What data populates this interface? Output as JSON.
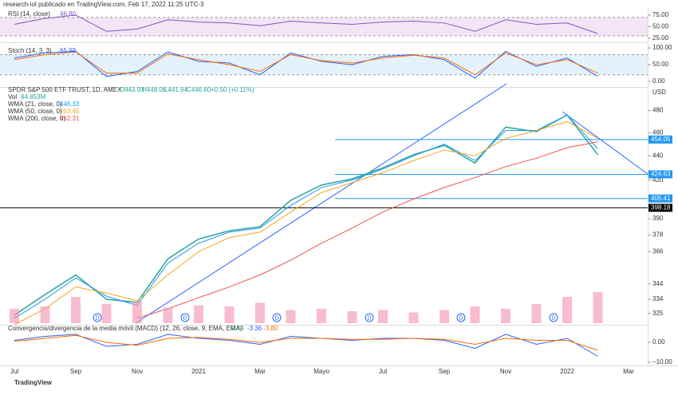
{
  "header": "research-iol publicado en TradingView.com, Feb 17, 2022 11:25 UTC-3",
  "footer": "TradingView",
  "dividends": [
    "D",
    "D",
    "D",
    "D",
    "D",
    "D"
  ],
  "chart_data": [
    {
      "type": "line",
      "ylim": [
        18,
        87
      ],
      "yticks": [
        {
          "value": 75,
          "label": "75.00"
        },
        {
          "value": 50,
          "label": "50.00"
        },
        {
          "value": 25,
          "label": "25.00"
        }
      ],
      "band": [
        30,
        70
      ],
      "band_color": "#f3e5f5",
      "series": [
        {
          "name": "RSI (14, close)",
          "current": "46.80",
          "color": "#7e57c2",
          "values": [
            55,
            68,
            75,
            40,
            45,
            65,
            60,
            58,
            52,
            62,
            58,
            55,
            60,
            62,
            58,
            40,
            65,
            55,
            58,
            35,
            null
          ]
        }
      ]
    },
    {
      "type": "line",
      "ylim": [
        -14,
        112
      ],
      "yticks": [
        {
          "value": 100,
          "label": "100.00"
        },
        {
          "value": 50,
          "label": "50.00"
        },
        {
          "value": 0,
          "label": "0.00"
        }
      ],
      "band": [
        20,
        80
      ],
      "band_color": "#e3f2fd",
      "series": [
        {
          "name": "Stoch (14, 3, 3)",
          "current": "65.99",
          "color": "#2962ff",
          "values": [
            70,
            85,
            90,
            15,
            30,
            88,
            60,
            55,
            20,
            85,
            60,
            50,
            75,
            80,
            65,
            10,
            90,
            45,
            70,
            15,
            null
          ]
        },
        {
          "color": "#ff6d00",
          "values": [
            65,
            80,
            88,
            25,
            25,
            82,
            65,
            50,
            30,
            80,
            62,
            55,
            70,
            78,
            70,
            20,
            85,
            50,
            65,
            25,
            null
          ]
        }
      ]
    },
    {
      "type": "line",
      "log": true,
      "ylim": [
        318,
        500
      ],
      "unit": "USD",
      "title": "SPDR S&P 500 ETF TRUST, 1D, AMEX",
      "ohlc": [
        "O443.93",
        "H448.06",
        "L441.94",
        "C446.60",
        "+0.50 (+0.11%)"
      ],
      "categories": [
        "Jul",
        null,
        "Sep",
        null,
        "Nov",
        null,
        "2021",
        null,
        "Mar",
        null,
        "Mayo",
        null,
        "Jul",
        null,
        "Sep",
        null,
        "Nov",
        null,
        "2022",
        null,
        "Mar"
      ],
      "yticks": [
        480,
        460,
        440,
        420,
        390,
        378,
        366,
        344,
        334,
        325
      ],
      "levels": [
        454.05,
        424.63,
        405.41,
        398.18
      ],
      "level_colors": [
        "#2196f3",
        "#2196f3",
        "#2196f3",
        "#000000"
      ],
      "series": [
        {
          "color": "#26a69a",
          "values": [
            324,
            337,
            350,
            334,
            332,
            361,
            375,
            381,
            384,
            404,
            416,
            421,
            430,
            441,
            449,
            434,
            465,
            461,
            476,
            441,
            null
          ]
        },
        {
          "name": "WMA (21, close, 0)",
          "current": "446.33",
          "color": "#2196f3",
          "values": [
            322,
            334,
            348,
            336,
            330,
            358,
            372,
            380,
            383,
            400,
            414,
            420,
            429,
            440,
            450,
            436,
            462,
            462,
            476,
            446,
            null
          ]
        },
        {
          "name": "WMA (50, close, 0)",
          "current": "453.45",
          "color": "#f5a623",
          "values": [
            318,
            328,
            342,
            338,
            333,
            350,
            366,
            376,
            380,
            395,
            410,
            418,
            426,
            436,
            445,
            440,
            455,
            462,
            470,
            455,
            null
          ]
        },
        {
          "name": "WMA (200, close, 0)",
          "current": "452.31",
          "color": "#ef5350",
          "values": [
            null,
            null,
            null,
            null,
            322,
            328,
            335,
            342,
            350,
            360,
            372,
            383,
            395,
            405,
            414,
            422,
            431,
            438,
            447,
            452,
            null
          ]
        }
      ]
    },
    {
      "type": "bar",
      "ylim": [
        0,
        250
      ],
      "name": "Vol",
      "current": "84.853M",
      "color": "#f48fb1",
      "values": [
        60,
        70,
        110,
        80,
        90,
        65,
        75,
        70,
        85,
        55,
        60,
        50,
        55,
        45,
        55,
        70,
        60,
        80,
        110,
        130,
        null
      ]
    },
    {
      "type": "line",
      "ylim": [
        -11.6,
        8.8
      ],
      "yticks": [
        {
          "value": 0,
          "label": "0.00"
        },
        {
          "value": -10,
          "label": "−10.00"
        }
      ],
      "title": "Convergencia/divergencia de la media móvil (MACD) (12, 26, close, 9, EMA, EMA)",
      "currents": [
        "0.44",
        "-3.36",
        "-3.80"
      ],
      "series": [
        {
          "color": "#2962ff",
          "values": [
            1,
            3,
            4,
            -2,
            -1,
            4,
            2,
            1,
            -1,
            3,
            2,
            1,
            2,
            2,
            1,
            -3,
            4,
            -1,
            2,
            -7,
            null
          ]
        },
        {
          "color": "#ff6d00",
          "values": [
            0.5,
            2,
            3.5,
            0,
            -1.5,
            2,
            2.5,
            1.5,
            0,
            2,
            2,
            1.5,
            1.5,
            2,
            1.5,
            -1,
            2,
            1,
            1,
            -4,
            null
          ]
        }
      ]
    }
  ]
}
